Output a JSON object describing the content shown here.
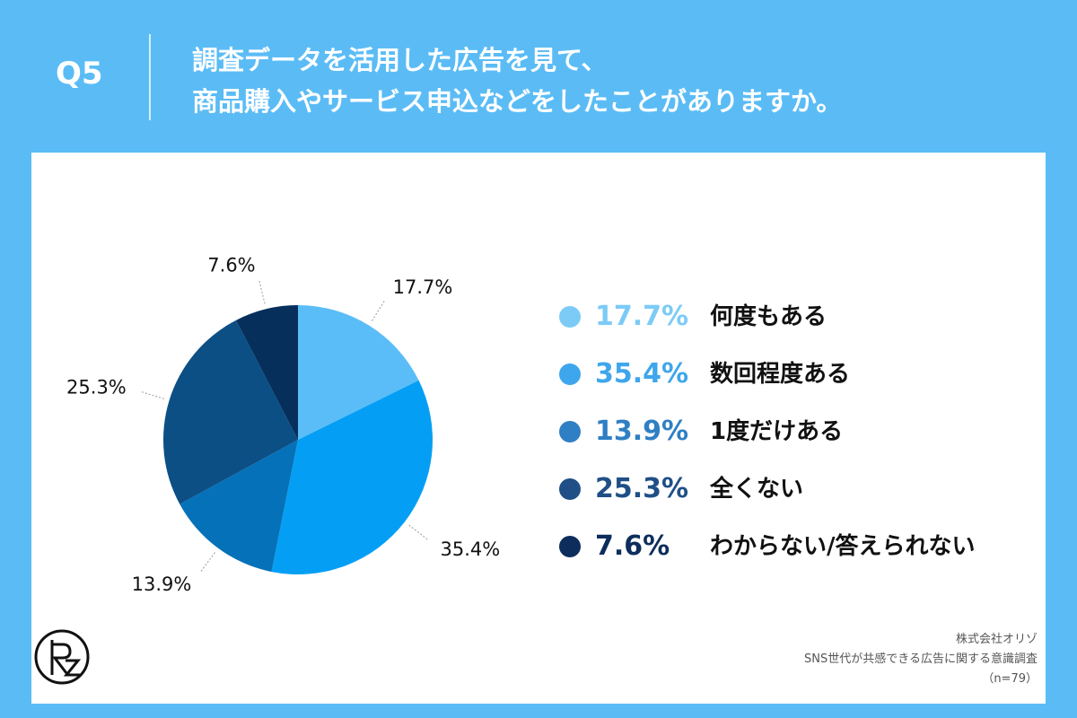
{
  "header": {
    "q_label": "Q5",
    "title_line1": "調査データを活用した広告を見て、",
    "title_line2": "商品購入やサービス申込などをしたことがありますか。"
  },
  "chart_data": {
    "type": "pie",
    "categories": [
      "何度もある",
      "数回程度ある",
      "1度だけある",
      "全くない",
      "わからない/答えられない"
    ],
    "values": [
      17.7,
      35.4,
      13.9,
      25.3,
      7.6
    ],
    "labels": [
      "17.7%",
      "35.4%",
      "13.9%",
      "25.3%",
      "7.6%"
    ],
    "colors": [
      "#5bbdf7",
      "#049ff5",
      "#0571b8",
      "#0b4f85",
      "#062f5c"
    ],
    "legend_colors": [
      "#7ccbf7",
      "#3ea6ec",
      "#2f7fc4",
      "#1f4f86",
      "#0d2d5c"
    ],
    "legend_placement": "right",
    "start_angle": "top",
    "direction": "clockwise"
  },
  "footer": {
    "company": "株式会社オリゾ",
    "survey": "SNS世代が共感できる広告に関する意識調査",
    "sample": "（n=79）"
  },
  "logo_text": "ORZ"
}
